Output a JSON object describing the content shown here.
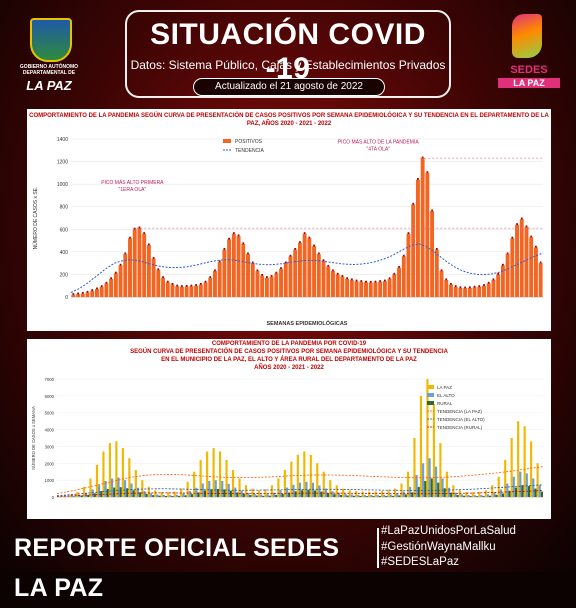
{
  "header": {
    "org_line1": "GOBIERNO AUTÓNOMO",
    "org_line2": "DEPARTAMENTAL DE",
    "org_name": "LA PAZ",
    "title": "SITUACIÓN COVID -19",
    "subtitle": "Datos: Sistema Público, Cajas y Establecimientos Privados",
    "updated": "Actualizado el 21 agosto de 2022",
    "sedes_name": "SEDES",
    "sedes_place": "LA PAZ"
  },
  "footer": {
    "report": "REPORTE OFICIAL SEDES LA PAZ",
    "hashtags": [
      "#LaPazUnidosPorLaSalud",
      "#GestiónWaynaMallku",
      "#SEDESLaPaz"
    ]
  },
  "colors": {
    "accent_red": "#c00000",
    "bar_orange": "#f26522",
    "trend_blue": "#2e5bd6",
    "lapaz_bar": "#f2b800",
    "elalto_bar": "#6aa0d8",
    "rural_bar": "#2f6b2f"
  },
  "chart_data": [
    {
      "type": "bar",
      "title": "COMPORTAMIENTO DE LA PANDEMIA SEGÚN CURVA DE PRESENTACIÓN DE CASOS POSITIVOS POR SEMANA EPIDEMIOLÓGICA Y SU TENDENCIA EN EL DEPARTAMENTO DE LA PAZ, AÑOS 2020 - 2021 - 2022",
      "xlabel": "SEMANAS EPIDEMIOLÓGICAS",
      "ylabel": "NÚMERO DE CASOS x SE.",
      "ylim": [
        0,
        1400
      ],
      "yticks": [
        0,
        200,
        400,
        600,
        800,
        1000,
        1200,
        1400
      ],
      "grid": true,
      "legend_placement": "top-left",
      "series": [
        {
          "name": "POSITIVOS",
          "values": [
            20,
            25,
            30,
            40,
            55,
            70,
            90,
            120,
            160,
            210,
            280,
            380,
            520,
            600,
            610,
            560,
            460,
            340,
            240,
            170,
            130,
            110,
            95,
            90,
            92,
            95,
            100,
            110,
            130,
            170,
            230,
            310,
            420,
            510,
            560,
            540,
            470,
            380,
            300,
            230,
            190,
            170,
            180,
            210,
            250,
            300,
            360,
            420,
            480,
            560,
            520,
            450,
            380,
            320,
            270,
            230,
            200,
            180,
            160,
            150,
            140,
            135,
            130,
            128,
            130,
            135,
            140,
            160,
            200,
            260,
            360,
            560,
            820,
            1040,
            1230,
            1100,
            760,
            420,
            230,
            150,
            110,
            90,
            80,
            78,
            80,
            85,
            90,
            100,
            120,
            150,
            200,
            280,
            380,
            520,
            640,
            690,
            620,
            530,
            440,
            300
          ]
        },
        {
          "name": "TENDENCIA",
          "values": [
            40,
            70,
            110,
            160,
            210,
            260,
            300,
            320,
            330,
            325,
            310,
            290,
            275,
            265,
            260,
            262,
            268,
            280,
            295,
            310,
            322,
            330,
            330,
            322,
            310,
            298,
            290,
            286,
            288,
            295,
            305,
            315,
            322,
            325,
            322,
            314,
            305,
            296,
            290,
            288,
            292,
            300,
            315,
            335,
            360,
            395,
            430,
            460,
            470,
            445,
            400,
            350,
            300,
            260,
            230,
            210,
            200,
            198,
            205,
            220,
            245,
            275,
            305,
            335,
            365,
            390
          ]
        }
      ],
      "annotations": [
        {
          "text": "PICO MÁS ALTO PRIMERA",
          "text2": "\"1ERA OLA\""
        },
        {
          "text": "PICO MÁS ALTO DE LA PANDEMIA",
          "text2": "\"4TA OLA\""
        }
      ]
    },
    {
      "type": "bar",
      "title_lines": [
        "COMPORTAMIENTO DE LA PANDEMIA POR COVID-19",
        "SEGÚN CURVA DE PRESENTACIÓN DE CASOS POSITIVOS POR SEMANA EPIDEMIOLÓGICA Y SU TENDENCIA",
        "EN EL MUNICIPIO DE LA PAZ, EL ALTO Y ÁREA RURAL DEL DEPARTAMENTO DE LA PAZ",
        "AÑOS 2020 - 2021 - 2022"
      ],
      "ylabel": "NÚMERO DE CASOS x SEMANA",
      "ylim": [
        0,
        7000
      ],
      "yticks": [
        0,
        1000,
        2000,
        3000,
        4000,
        5000,
        6000,
        7000
      ],
      "grid": true,
      "legend_placement": "top-right",
      "series": [
        {
          "name": "LA PAZ",
          "values": [
            50,
            80,
            150,
            300,
            600,
            1100,
            1900,
            2700,
            3200,
            3300,
            2900,
            2300,
            1600,
            1000,
            600,
            400,
            300,
            280,
            320,
            500,
            900,
            1500,
            2200,
            2700,
            2900,
            2700,
            2200,
            1600,
            1100,
            700,
            500,
            400,
            450,
            700,
            1100,
            1600,
            2100,
            2500,
            2700,
            2500,
            2000,
            1500,
            1000,
            700,
            500,
            400,
            350,
            330,
            320,
            330,
            350,
            400,
            500,
            800,
            1500,
            3500,
            6000,
            7000,
            5500,
            3200,
            1500,
            700,
            400,
            300,
            280,
            300,
            400,
            700,
            1200,
            2200,
            3500,
            4500,
            4200,
            3300,
            2000
          ]
        },
        {
          "name": "EL ALTO",
          "values": [
            20,
            30,
            60,
            120,
            250,
            450,
            700,
            950,
            1100,
            1150,
            1000,
            800,
            550,
            350,
            220,
            150,
            120,
            110,
            130,
            200,
            350,
            550,
            800,
            950,
            1000,
            950,
            780,
            560,
            380,
            250,
            180,
            150,
            170,
            260,
            400,
            560,
            720,
            850,
            900,
            850,
            680,
            500,
            350,
            250,
            180,
            150,
            130,
            120,
            120,
            125,
            130,
            150,
            200,
            320,
            600,
            1300,
            2000,
            2300,
            1800,
            1100,
            550,
            260,
            160,
            120,
            110,
            120,
            160,
            280,
            450,
            800,
            1200,
            1500,
            1400,
            1100,
            700
          ]
        },
        {
          "name": "RURAL",
          "values": [
            10,
            15,
            30,
            60,
            120,
            220,
            350,
            480,
            560,
            580,
            520,
            400,
            280,
            180,
            110,
            80,
            60,
            55,
            65,
            100,
            170,
            270,
            390,
            460,
            480,
            450,
            370,
            270,
            180,
            120,
            90,
            70,
            80,
            120,
            180,
            260,
            340,
            400,
            420,
            390,
            320,
            240,
            170,
            120,
            90,
            70,
            60,
            55,
            55,
            58,
            60,
            70,
            95,
            150,
            280,
            600,
            950,
            1100,
            850,
            520,
            260,
            120,
            75,
            55,
            50,
            55,
            75,
            130,
            210,
            370,
            560,
            700,
            650,
            500,
            320
          ]
        },
        {
          "name": "TENDENCIA (LA PAZ)",
          "values": [
            200,
            400,
            650,
            900,
            1150,
            1300,
            1350,
            1320,
            1250,
            1180,
            1150,
            1160,
            1200,
            1260,
            1300,
            1310,
            1290,
            1250,
            1200,
            1160,
            1140,
            1150,
            1200,
            1280,
            1380,
            1500,
            1650,
            1800
          ]
        },
        {
          "name": "TENDENCIA (EL ALTO)",
          "values": [
            80,
            160,
            260,
            360,
            440,
            480,
            490,
            470,
            440,
            410,
            400,
            405,
            420,
            440,
            455,
            460,
            450,
            430,
            410,
            395,
            390,
            395,
            420,
            460,
            520,
            590,
            660,
            730
          ]
        },
        {
          "name": "TENDENCIA (RURAL)",
          "values": [
            40,
            80,
            130,
            180,
            220,
            240,
            245,
            235,
            220,
            205,
            200,
            203,
            210,
            220,
            228,
            230,
            225,
            215,
            205,
            198,
            195,
            198,
            210,
            230,
            260,
            300,
            340,
            380
          ]
        }
      ]
    }
  ]
}
